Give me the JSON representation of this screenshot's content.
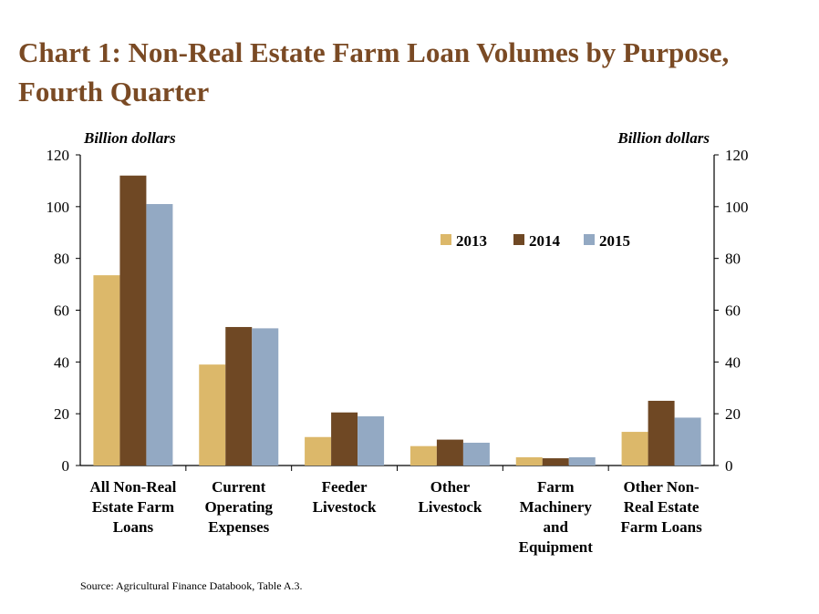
{
  "page": {
    "title_lines": [
      "Chart 1: Non-Real Estate Farm Loan Volumes by Purpose,",
      "Fourth Quarter"
    ],
    "source": "Source: Agricultural Finance Databook, Table A.3."
  },
  "chart_data": {
    "type": "bar",
    "title": "Chart 1: Non-Real Estate Farm Loan Volumes by Purpose, Fourth Quarter",
    "ylabel_left": "Billion dollars",
    "ylabel_right": "Billion dollars",
    "ylim": [
      0,
      120
    ],
    "yticks": [
      0,
      20,
      40,
      60,
      80,
      100,
      120
    ],
    "categories": [
      [
        "All Non-Real",
        "Estate Farm",
        "Loans"
      ],
      [
        "Current",
        "Operating",
        "Expenses"
      ],
      [
        "Feeder",
        "Livestock"
      ],
      [
        "Other",
        "Livestock"
      ],
      [
        "Farm",
        "Machinery",
        "and",
        "Equipment"
      ],
      [
        "Other Non-",
        "Real Estate",
        "Farm Loans"
      ]
    ],
    "series": [
      {
        "name": "2013",
        "color": "#dcb86a",
        "values": [
          73.5,
          39,
          11,
          7.5,
          3.2,
          13
        ]
      },
      {
        "name": "2014",
        "color": "#6f4824",
        "values": [
          112,
          53.5,
          20.5,
          10,
          2.8,
          25
        ]
      },
      {
        "name": "2015",
        "color": "#93a9c3",
        "values": [
          101,
          53,
          19,
          8.8,
          3.2,
          18.5
        ]
      }
    ],
    "legend_position": "top-right",
    "grid": false
  }
}
